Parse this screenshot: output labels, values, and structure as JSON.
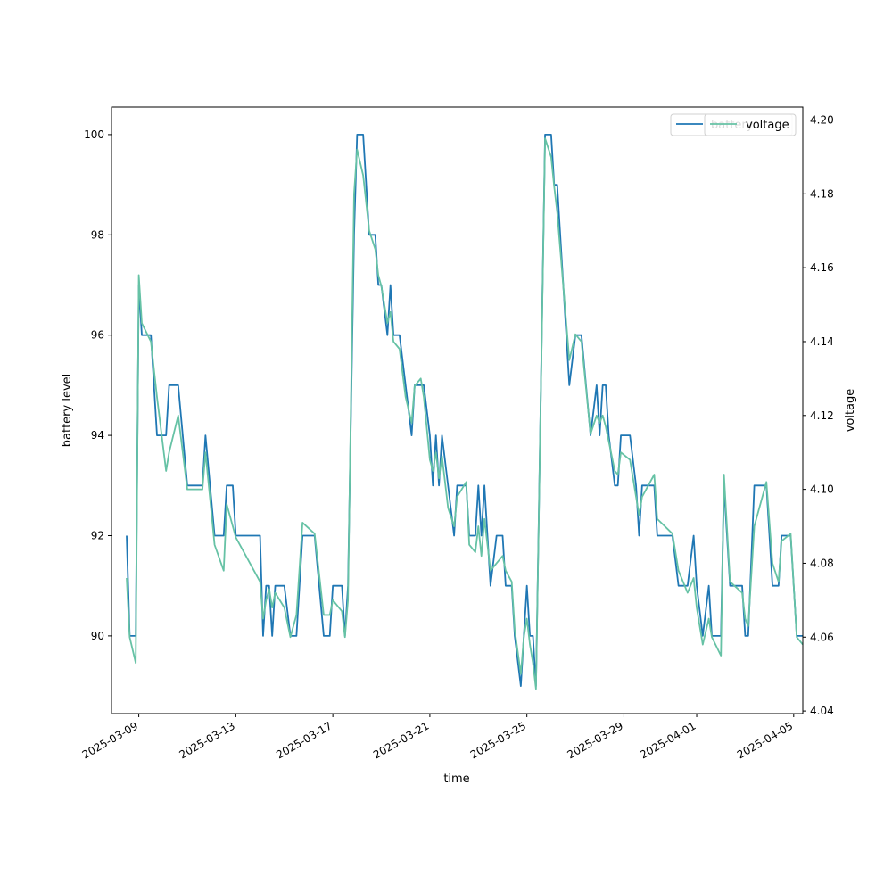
{
  "chart_data": {
    "type": "line",
    "xlabel": "time",
    "ylabel_left": "battery level",
    "ylabel_right": "voltage",
    "x_tick_labels": [
      "2025-03-09",
      "2025-03-13",
      "2025-03-17",
      "2025-03-21",
      "2025-03-25",
      "2025-03-29",
      "2025-04-01",
      "2025-04-05"
    ],
    "x_tick_dates": [
      "2025-03-09",
      "2025-03-13",
      "2025-03-17",
      "2025-03-21",
      "2025-03-25",
      "2025-03-29",
      "2025-04-01",
      "2025-04-05"
    ],
    "x_range": [
      "2025-03-07T21:00",
      "2025-04-05T09:00"
    ],
    "left_axis": {
      "ylim": [
        88.45,
        100.55
      ],
      "ticks": [
        90,
        92,
        94,
        96,
        98,
        100
      ]
    },
    "right_axis": {
      "ylim": [
        4.0393,
        4.2035
      ],
      "ticks": [
        4.04,
        4.06,
        4.08,
        4.1,
        4.12,
        4.14,
        4.16,
        4.18,
        4.2
      ],
      "tick_labels": [
        "4.04",
        "4.06",
        "4.08",
        "4.10",
        "4.12",
        "4.14",
        "4.16",
        "4.18",
        "4.20"
      ]
    },
    "legend": {
      "placement": "top-right",
      "entries": [
        "battery",
        "voltage"
      ]
    },
    "grid": false,
    "series": [
      {
        "name": "battery",
        "axis": "left",
        "color": "#1f77b4",
        "points": [
          [
            "2025-03-08T12:00",
            92
          ],
          [
            "2025-03-08T15:00",
            90
          ],
          [
            "2025-03-08T21:00",
            90
          ],
          [
            "2025-03-09T00:00",
            97
          ],
          [
            "2025-03-09T03:00",
            96
          ],
          [
            "2025-03-09T12:00",
            96
          ],
          [
            "2025-03-09T18:00",
            94
          ],
          [
            "2025-03-10T03:00",
            94
          ],
          [
            "2025-03-10T06:00",
            95
          ],
          [
            "2025-03-10T15:00",
            95
          ],
          [
            "2025-03-11T00:00",
            93
          ],
          [
            "2025-03-11T15:00",
            93
          ],
          [
            "2025-03-11T18:00",
            94
          ],
          [
            "2025-03-12T03:00",
            92
          ],
          [
            "2025-03-12T12:00",
            92
          ],
          [
            "2025-03-12T15:00",
            93
          ],
          [
            "2025-03-12T21:00",
            93
          ],
          [
            "2025-03-13T00:00",
            92
          ],
          [
            "2025-03-14T00:00",
            92
          ],
          [
            "2025-03-14T03:00",
            90
          ],
          [
            "2025-03-14T06:00",
            91
          ],
          [
            "2025-03-14T09:00",
            91
          ],
          [
            "2025-03-14T12:00",
            90
          ],
          [
            "2025-03-14T15:00",
            91
          ],
          [
            "2025-03-15T00:00",
            91
          ],
          [
            "2025-03-15T06:00",
            90
          ],
          [
            "2025-03-15T12:00",
            90
          ],
          [
            "2025-03-15T18:00",
            92
          ],
          [
            "2025-03-16T06:00",
            92
          ],
          [
            "2025-03-16T15:00",
            90
          ],
          [
            "2025-03-16T21:00",
            90
          ],
          [
            "2025-03-17T00:00",
            91
          ],
          [
            "2025-03-17T09:00",
            91
          ],
          [
            "2025-03-17T12:00",
            90
          ],
          [
            "2025-03-17T15:00",
            91
          ],
          [
            "2025-03-17T21:00",
            98
          ],
          [
            "2025-03-18T00:00",
            100
          ],
          [
            "2025-03-18T06:00",
            100
          ],
          [
            "2025-03-18T12:00",
            98
          ],
          [
            "2025-03-18T18:00",
            98
          ],
          [
            "2025-03-18T21:00",
            97
          ],
          [
            "2025-03-19T00:00",
            97
          ],
          [
            "2025-03-19T06:00",
            96
          ],
          [
            "2025-03-19T09:00",
            97
          ],
          [
            "2025-03-19T12:00",
            96
          ],
          [
            "2025-03-19T18:00",
            96
          ],
          [
            "2025-03-20T00:00",
            95
          ],
          [
            "2025-03-20T06:00",
            94
          ],
          [
            "2025-03-20T09:00",
            95
          ],
          [
            "2025-03-20T15:00",
            95
          ],
          [
            "2025-03-20T18:00",
            95
          ],
          [
            "2025-03-21T00:00",
            94
          ],
          [
            "2025-03-21T03:00",
            93
          ],
          [
            "2025-03-21T06:00",
            94
          ],
          [
            "2025-03-21T09:00",
            93
          ],
          [
            "2025-03-21T12:00",
            94
          ],
          [
            "2025-03-21T18:00",
            93
          ],
          [
            "2025-03-22T00:00",
            92
          ],
          [
            "2025-03-22T03:00",
            93
          ],
          [
            "2025-03-22T12:00",
            93
          ],
          [
            "2025-03-22T15:00",
            92
          ],
          [
            "2025-03-22T21:00",
            92
          ],
          [
            "2025-03-23T00:00",
            93
          ],
          [
            "2025-03-23T03:00",
            92
          ],
          [
            "2025-03-23T06:00",
            93
          ],
          [
            "2025-03-23T12:00",
            91
          ],
          [
            "2025-03-23T18:00",
            92
          ],
          [
            "2025-03-24T00:00",
            92
          ],
          [
            "2025-03-24T03:00",
            91
          ],
          [
            "2025-03-24T09:00",
            91
          ],
          [
            "2025-03-24T12:00",
            90
          ],
          [
            "2025-03-24T18:00",
            89
          ],
          [
            "2025-03-24T21:00",
            90
          ],
          [
            "2025-03-25T00:00",
            91
          ],
          [
            "2025-03-25T03:00",
            90
          ],
          [
            "2025-03-25T06:00",
            90
          ],
          [
            "2025-03-25T09:00",
            89
          ],
          [
            "2025-03-25T18:00",
            100
          ],
          [
            "2025-03-26T00:00",
            100
          ],
          [
            "2025-03-26T03:00",
            99
          ],
          [
            "2025-03-26T06:00",
            99
          ],
          [
            "2025-03-26T18:00",
            95
          ],
          [
            "2025-03-27T00:00",
            96
          ],
          [
            "2025-03-27T06:00",
            96
          ],
          [
            "2025-03-27T15:00",
            94
          ],
          [
            "2025-03-27T21:00",
            95
          ],
          [
            "2025-03-28T00:00",
            94
          ],
          [
            "2025-03-28T03:00",
            95
          ],
          [
            "2025-03-28T06:00",
            95
          ],
          [
            "2025-03-28T09:00",
            94
          ],
          [
            "2025-03-28T15:00",
            93
          ],
          [
            "2025-03-28T18:00",
            93
          ],
          [
            "2025-03-28T21:00",
            94
          ],
          [
            "2025-03-29T06:00",
            94
          ],
          [
            "2025-03-29T12:00",
            93
          ],
          [
            "2025-03-29T15:00",
            92
          ],
          [
            "2025-03-29T18:00",
            93
          ],
          [
            "2025-03-30T06:00",
            93
          ],
          [
            "2025-03-30T09:00",
            92
          ],
          [
            "2025-03-31T00:00",
            92
          ],
          [
            "2025-03-31T06:00",
            91
          ],
          [
            "2025-03-31T15:00",
            91
          ],
          [
            "2025-03-31T21:00",
            92
          ],
          [
            "2025-04-01T00:00",
            91
          ],
          [
            "2025-04-01T06:00",
            90
          ],
          [
            "2025-04-01T12:00",
            91
          ],
          [
            "2025-04-01T15:00",
            90
          ],
          [
            "2025-04-02T00:00",
            90
          ],
          [
            "2025-04-02T03:00",
            93
          ],
          [
            "2025-04-02T09:00",
            91
          ],
          [
            "2025-04-02T21:00",
            91
          ],
          [
            "2025-04-03T00:00",
            90
          ],
          [
            "2025-04-03T03:00",
            90
          ],
          [
            "2025-04-03T09:00",
            93
          ],
          [
            "2025-04-03T21:00",
            93
          ],
          [
            "2025-04-04T03:00",
            91
          ],
          [
            "2025-04-04T09:00",
            91
          ],
          [
            "2025-04-04T12:00",
            92
          ],
          [
            "2025-04-04T21:00",
            92
          ],
          [
            "2025-04-05T03:00",
            90
          ],
          [
            "2025-04-05T09:00",
            90
          ]
        ]
      },
      {
        "name": "voltage",
        "axis": "right",
        "color": "#66c2a5",
        "points": [
          [
            "2025-03-08T12:00",
            4.076
          ],
          [
            "2025-03-08T15:00",
            4.06
          ],
          [
            "2025-03-08T21:00",
            4.053
          ],
          [
            "2025-03-09T00:00",
            4.158
          ],
          [
            "2025-03-09T03:00",
            4.145
          ],
          [
            "2025-03-09T12:00",
            4.14
          ],
          [
            "2025-03-09T18:00",
            4.125
          ],
          [
            "2025-03-10T03:00",
            4.105
          ],
          [
            "2025-03-10T06:00",
            4.11
          ],
          [
            "2025-03-10T15:00",
            4.12
          ],
          [
            "2025-03-11T00:00",
            4.1
          ],
          [
            "2025-03-11T15:00",
            4.1
          ],
          [
            "2025-03-11T18:00",
            4.11
          ],
          [
            "2025-03-12T03:00",
            4.085
          ],
          [
            "2025-03-12T12:00",
            4.078
          ],
          [
            "2025-03-12T15:00",
            4.096
          ],
          [
            "2025-03-12T21:00",
            4.09
          ],
          [
            "2025-03-13T00:00",
            4.087
          ],
          [
            "2025-03-14T00:00",
            4.075
          ],
          [
            "2025-03-14T03:00",
            4.065
          ],
          [
            "2025-03-14T06:00",
            4.07
          ],
          [
            "2025-03-14T09:00",
            4.073
          ],
          [
            "2025-03-14T12:00",
            4.068
          ],
          [
            "2025-03-14T15:00",
            4.072
          ],
          [
            "2025-03-15T00:00",
            4.068
          ],
          [
            "2025-03-15T06:00",
            4.06
          ],
          [
            "2025-03-15T12:00",
            4.066
          ],
          [
            "2025-03-15T18:00",
            4.091
          ],
          [
            "2025-03-16T06:00",
            4.088
          ],
          [
            "2025-03-16T15:00",
            4.066
          ],
          [
            "2025-03-16T21:00",
            4.066
          ],
          [
            "2025-03-17T00:00",
            4.07
          ],
          [
            "2025-03-17T09:00",
            4.067
          ],
          [
            "2025-03-17T12:00",
            4.06
          ],
          [
            "2025-03-17T15:00",
            4.07
          ],
          [
            "2025-03-17T21:00",
            4.18
          ],
          [
            "2025-03-18T00:00",
            4.192
          ],
          [
            "2025-03-18T06:00",
            4.185
          ],
          [
            "2025-03-18T12:00",
            4.17
          ],
          [
            "2025-03-18T18:00",
            4.165
          ],
          [
            "2025-03-18T21:00",
            4.158
          ],
          [
            "2025-03-19T00:00",
            4.155
          ],
          [
            "2025-03-19T06:00",
            4.145
          ],
          [
            "2025-03-19T09:00",
            4.148
          ],
          [
            "2025-03-19T12:00",
            4.14
          ],
          [
            "2025-03-19T18:00",
            4.138
          ],
          [
            "2025-03-20T00:00",
            4.125
          ],
          [
            "2025-03-20T06:00",
            4.118
          ],
          [
            "2025-03-20T09:00",
            4.128
          ],
          [
            "2025-03-20T15:00",
            4.13
          ],
          [
            "2025-03-20T18:00",
            4.125
          ],
          [
            "2025-03-21T00:00",
            4.108
          ],
          [
            "2025-03-21T03:00",
            4.105
          ],
          [
            "2025-03-21T06:00",
            4.11
          ],
          [
            "2025-03-21T09:00",
            4.103
          ],
          [
            "2025-03-21T12:00",
            4.109
          ],
          [
            "2025-03-21T18:00",
            4.095
          ],
          [
            "2025-03-22T00:00",
            4.09
          ],
          [
            "2025-03-22T03:00",
            4.098
          ],
          [
            "2025-03-22T12:00",
            4.102
          ],
          [
            "2025-03-22T15:00",
            4.085
          ],
          [
            "2025-03-22T21:00",
            4.083
          ],
          [
            "2025-03-23T00:00",
            4.09
          ],
          [
            "2025-03-23T03:00",
            4.082
          ],
          [
            "2025-03-23T06:00",
            4.092
          ],
          [
            "2025-03-23T12:00",
            4.078
          ],
          [
            "2025-03-23T18:00",
            4.08
          ],
          [
            "2025-03-24T00:00",
            4.082
          ],
          [
            "2025-03-24T03:00",
            4.078
          ],
          [
            "2025-03-24T09:00",
            4.075
          ],
          [
            "2025-03-24T12:00",
            4.062
          ],
          [
            "2025-03-24T18:00",
            4.05
          ],
          [
            "2025-03-24T21:00",
            4.06
          ],
          [
            "2025-03-25T00:00",
            4.065
          ],
          [
            "2025-03-25T03:00",
            4.058
          ],
          [
            "2025-03-25T06:00",
            4.053
          ],
          [
            "2025-03-25T09:00",
            4.046
          ],
          [
            "2025-03-25T18:00",
            4.195
          ],
          [
            "2025-03-26T00:00",
            4.19
          ],
          [
            "2025-03-26T03:00",
            4.182
          ],
          [
            "2025-03-26T06:00",
            4.175
          ],
          [
            "2025-03-26T18:00",
            4.135
          ],
          [
            "2025-03-27T00:00",
            4.142
          ],
          [
            "2025-03-27T06:00",
            4.14
          ],
          [
            "2025-03-27T15:00",
            4.115
          ],
          [
            "2025-03-27T21:00",
            4.12
          ],
          [
            "2025-03-28T00:00",
            4.118
          ],
          [
            "2025-03-28T03:00",
            4.12
          ],
          [
            "2025-03-28T06:00",
            4.117
          ],
          [
            "2025-03-28T09:00",
            4.113
          ],
          [
            "2025-03-28T15:00",
            4.105
          ],
          [
            "2025-03-28T18:00",
            4.104
          ],
          [
            "2025-03-28T21:00",
            4.11
          ],
          [
            "2025-03-29T06:00",
            4.108
          ],
          [
            "2025-03-29T12:00",
            4.098
          ],
          [
            "2025-03-29T15:00",
            4.093
          ],
          [
            "2025-03-29T18:00",
            4.098
          ],
          [
            "2025-03-30T06:00",
            4.104
          ],
          [
            "2025-03-30T09:00",
            4.092
          ],
          [
            "2025-03-31T00:00",
            4.088
          ],
          [
            "2025-03-31T06:00",
            4.078
          ],
          [
            "2025-03-31T15:00",
            4.072
          ],
          [
            "2025-03-31T21:00",
            4.076
          ],
          [
            "2025-04-01T00:00",
            4.068
          ],
          [
            "2025-04-01T06:00",
            4.058
          ],
          [
            "2025-04-01T12:00",
            4.065
          ],
          [
            "2025-04-01T15:00",
            4.06
          ],
          [
            "2025-04-02T00:00",
            4.055
          ],
          [
            "2025-04-02T03:00",
            4.104
          ],
          [
            "2025-04-02T09:00",
            4.075
          ],
          [
            "2025-04-02T21:00",
            4.072
          ],
          [
            "2025-04-03T00:00",
            4.065
          ],
          [
            "2025-04-03T03:00",
            4.063
          ],
          [
            "2025-04-03T09:00",
            4.09
          ],
          [
            "2025-04-03T21:00",
            4.102
          ],
          [
            "2025-04-04T03:00",
            4.08
          ],
          [
            "2025-04-04T09:00",
            4.075
          ],
          [
            "2025-04-04T12:00",
            4.086
          ],
          [
            "2025-04-04T21:00",
            4.088
          ],
          [
            "2025-04-05T03:00",
            4.06
          ],
          [
            "2025-04-05T09:00",
            4.058
          ]
        ]
      }
    ]
  }
}
